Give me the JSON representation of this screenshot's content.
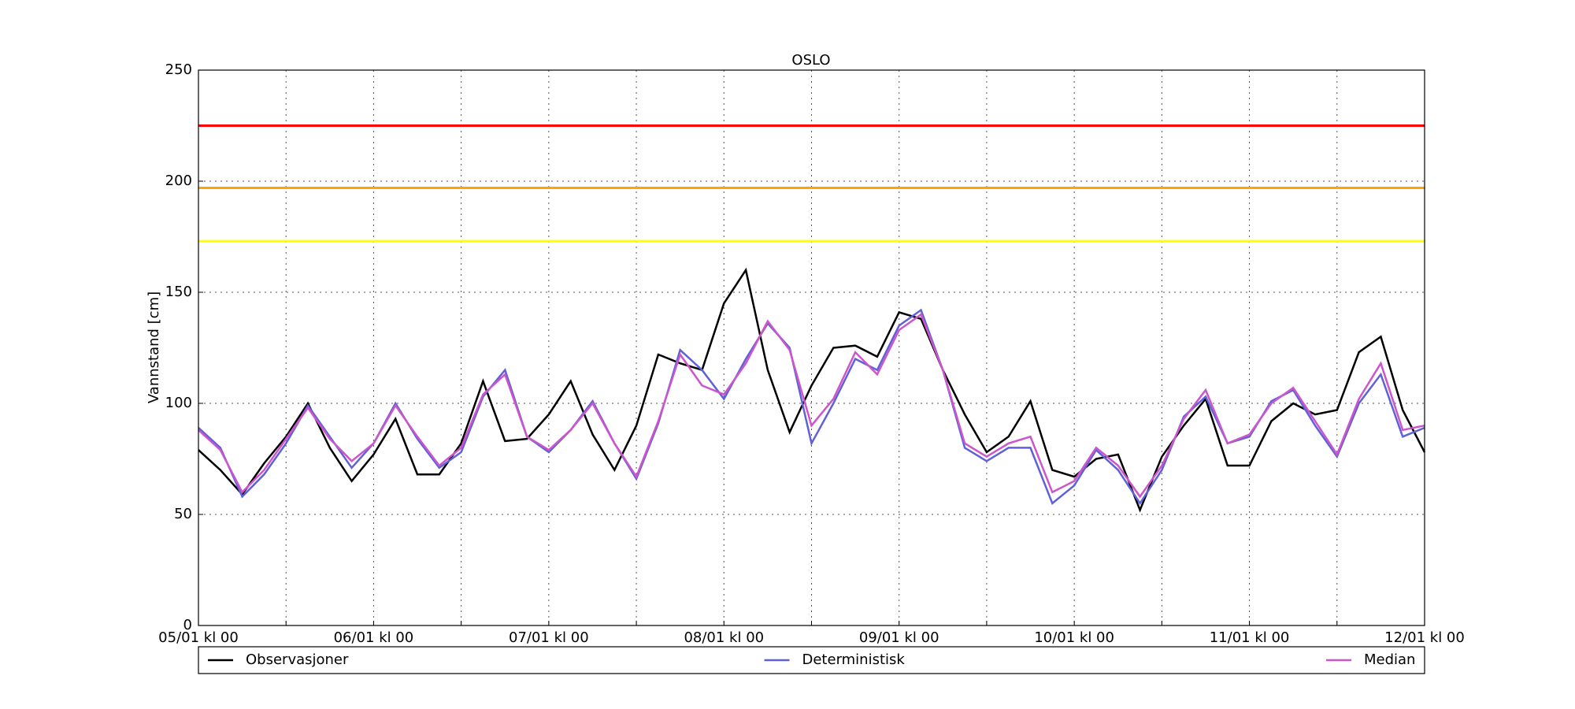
{
  "chart_data": {
    "type": "line",
    "title": "OSLO",
    "y_label": "Vannstand [cm]",
    "x": [
      0,
      3,
      6,
      9,
      12,
      15,
      18,
      21,
      24,
      27,
      30,
      33,
      36,
      39,
      42,
      45,
      48,
      51,
      54,
      57,
      60,
      63,
      66,
      69,
      72,
      75,
      78,
      81,
      84,
      87,
      90,
      93,
      96,
      99,
      102,
      105,
      108,
      111,
      114,
      117,
      120,
      123,
      126,
      129,
      132,
      135,
      138,
      141,
      144,
      147,
      150,
      153,
      156,
      159,
      162,
      165,
      168
    ],
    "series": [
      {
        "name": "Observasjoner",
        "color": "#000000",
        "values": [
          79,
          70,
          59,
          73,
          85,
          100,
          80,
          65,
          77,
          93,
          68,
          68,
          82,
          110,
          83,
          84,
          95,
          110,
          86,
          70,
          90,
          122,
          118,
          115,
          145,
          160,
          115,
          87,
          108,
          125,
          126,
          121,
          141,
          138,
          115,
          95,
          78,
          85,
          101,
          70,
          67,
          75,
          77,
          52,
          76,
          90,
          102,
          72,
          72,
          92,
          100,
          95,
          97,
          123,
          130,
          97,
          78
        ]
      },
      {
        "name": "Deterministisk",
        "color": "#6060d8",
        "values": [
          89,
          80,
          58,
          68,
          82,
          99,
          85,
          71,
          82,
          100,
          84,
          71,
          78,
          103,
          115,
          85,
          78,
          88,
          101,
          82,
          66,
          91,
          124,
          115,
          102,
          120,
          136,
          125,
          82,
          100,
          120,
          115,
          135,
          142,
          115,
          80,
          74,
          80,
          80,
          55,
          63,
          79,
          70,
          55,
          70,
          94,
          103,
          82,
          85,
          101,
          106,
          90,
          76,
          100,
          113,
          85,
          89
        ]
      },
      {
        "name": "Median",
        "color": "#cc55cc",
        "values": [
          88,
          79,
          60,
          70,
          84,
          98,
          84,
          74,
          82,
          99,
          85,
          72,
          80,
          104,
          113,
          85,
          79,
          88,
          100,
          82,
          67,
          92,
          122,
          108,
          104,
          118,
          137,
          124,
          90,
          102,
          123,
          113,
          133,
          140,
          115,
          82,
          76,
          82,
          85,
          60,
          65,
          80,
          72,
          58,
          72,
          93,
          106,
          82,
          86,
          100,
          107,
          92,
          77,
          102,
          118,
          88,
          90
        ]
      }
    ],
    "xlim": [
      0,
      168
    ],
    "xticks": [
      {
        "value": 0,
        "label": "05/01 kl 00"
      },
      {
        "value": 24,
        "label": "06/01 kl 00"
      },
      {
        "value": 48,
        "label": "07/01 kl 00"
      },
      {
        "value": 72,
        "label": "08/01 kl 00"
      },
      {
        "value": 96,
        "label": "09/01 kl 00"
      },
      {
        "value": 120,
        "label": "10/01 kl 00"
      },
      {
        "value": 144,
        "label": "11/01 kl 00"
      },
      {
        "value": 168,
        "label": "12/01 kl 00"
      }
    ],
    "xminorticks": [
      12,
      36,
      60,
      84,
      108,
      132,
      156
    ],
    "ylim": [
      0,
      250
    ],
    "yticks": [
      0,
      50,
      100,
      150,
      200,
      250
    ],
    "hlines": [
      {
        "value": 225,
        "color": "#ff0000"
      },
      {
        "value": 197,
        "color": "#ffa500"
      },
      {
        "value": 173,
        "color": "#ffff00"
      }
    ],
    "grid": true,
    "legend": "bottom"
  }
}
